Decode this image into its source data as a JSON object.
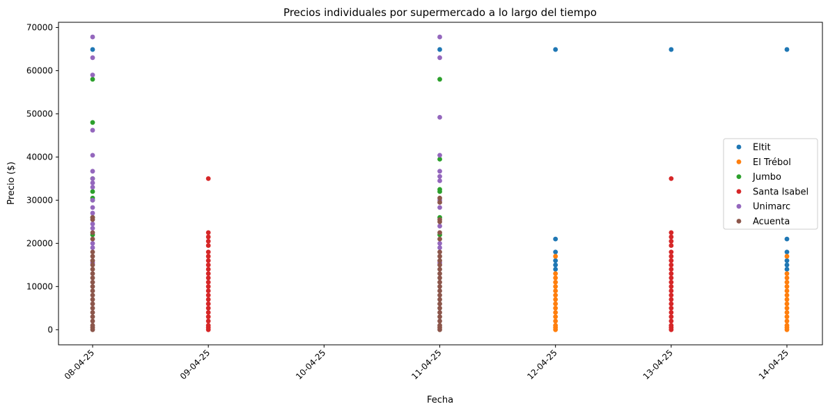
{
  "chart_data": {
    "type": "scatter",
    "title": "Precios individuales por supermercado a lo largo del tiempo",
    "xlabel": "Fecha",
    "ylabel": "Precio ($)",
    "categories": [
      "08-04-25",
      "09-04-25",
      "10-04-25",
      "11-04-25",
      "12-04-25",
      "13-04-25",
      "14-04-25"
    ],
    "ylim": [
      -3500,
      71200
    ],
    "yticks": [
      0,
      10000,
      20000,
      30000,
      40000,
      50000,
      60000,
      70000
    ],
    "grid": false,
    "legend_position": "right",
    "series": [
      {
        "name": "Eltit",
        "color": "#1f77b4",
        "points": [
          {
            "x": "08-04-25",
            "y": 64900
          },
          {
            "x": "11-04-25",
            "y": 64900
          },
          {
            "x": "12-04-25",
            "y": 64900
          },
          {
            "x": "12-04-25",
            "y": 21000
          },
          {
            "x": "12-04-25",
            "y": 18000
          },
          {
            "x": "12-04-25",
            "y": 16000
          },
          {
            "x": "12-04-25",
            "y": 15000
          },
          {
            "x": "12-04-25",
            "y": 14000
          },
          {
            "x": "13-04-25",
            "y": 64900
          },
          {
            "x": "14-04-25",
            "y": 64900
          },
          {
            "x": "14-04-25",
            "y": 21000
          },
          {
            "x": "14-04-25",
            "y": 18000
          },
          {
            "x": "14-04-25",
            "y": 16000
          },
          {
            "x": "14-04-25",
            "y": 15000
          },
          {
            "x": "14-04-25",
            "y": 14000
          }
        ]
      },
      {
        "name": "El Trébol",
        "color": "#ff7f0e",
        "points": [
          {
            "x": "12-04-25",
            "y": 17000
          },
          {
            "x": "12-04-25",
            "y": 13000
          },
          {
            "x": "12-04-25",
            "y": 12000
          },
          {
            "x": "12-04-25",
            "y": 11000
          },
          {
            "x": "12-04-25",
            "y": 10000
          },
          {
            "x": "12-04-25",
            "y": 9000
          },
          {
            "x": "12-04-25",
            "y": 8000
          },
          {
            "x": "12-04-25",
            "y": 7000
          },
          {
            "x": "12-04-25",
            "y": 6000
          },
          {
            "x": "12-04-25",
            "y": 5000
          },
          {
            "x": "12-04-25",
            "y": 4000
          },
          {
            "x": "12-04-25",
            "y": 3000
          },
          {
            "x": "12-04-25",
            "y": 2000
          },
          {
            "x": "12-04-25",
            "y": 1000
          },
          {
            "x": "12-04-25",
            "y": 500
          },
          {
            "x": "12-04-25",
            "y": 0
          },
          {
            "x": "14-04-25",
            "y": 17000
          },
          {
            "x": "14-04-25",
            "y": 13000
          },
          {
            "x": "14-04-25",
            "y": 12000
          },
          {
            "x": "14-04-25",
            "y": 11000
          },
          {
            "x": "14-04-25",
            "y": 10000
          },
          {
            "x": "14-04-25",
            "y": 9000
          },
          {
            "x": "14-04-25",
            "y": 8000
          },
          {
            "x": "14-04-25",
            "y": 7000
          },
          {
            "x": "14-04-25",
            "y": 6000
          },
          {
            "x": "14-04-25",
            "y": 5000
          },
          {
            "x": "14-04-25",
            "y": 4000
          },
          {
            "x": "14-04-25",
            "y": 3000
          },
          {
            "x": "14-04-25",
            "y": 2000
          },
          {
            "x": "14-04-25",
            "y": 1000
          },
          {
            "x": "14-04-25",
            "y": 500
          },
          {
            "x": "14-04-25",
            "y": 0
          }
        ]
      },
      {
        "name": "Jumbo",
        "color": "#2ca02c",
        "points": [
          {
            "x": "08-04-25",
            "y": 58000
          },
          {
            "x": "08-04-25",
            "y": 48000
          },
          {
            "x": "08-04-25",
            "y": 35000
          },
          {
            "x": "08-04-25",
            "y": 32000
          },
          {
            "x": "08-04-25",
            "y": 30500
          },
          {
            "x": "08-04-25",
            "y": 30000
          },
          {
            "x": "08-04-25",
            "y": 26000
          },
          {
            "x": "08-04-25",
            "y": 22000
          },
          {
            "x": "11-04-25",
            "y": 58000
          },
          {
            "x": "11-04-25",
            "y": 39500
          },
          {
            "x": "11-04-25",
            "y": 32500
          },
          {
            "x": "11-04-25",
            "y": 32000
          },
          {
            "x": "11-04-25",
            "y": 26000
          },
          {
            "x": "11-04-25",
            "y": 22000
          }
        ]
      },
      {
        "name": "Santa Isabel",
        "color": "#d62728",
        "points": [
          {
            "x": "09-04-25",
            "y": 35000
          },
          {
            "x": "09-04-25",
            "y": 22500
          },
          {
            "x": "09-04-25",
            "y": 21500
          },
          {
            "x": "09-04-25",
            "y": 20500
          },
          {
            "x": "09-04-25",
            "y": 19500
          },
          {
            "x": "09-04-25",
            "y": 18000
          },
          {
            "x": "09-04-25",
            "y": 17000
          },
          {
            "x": "09-04-25",
            "y": 16000
          },
          {
            "x": "09-04-25",
            "y": 15000
          },
          {
            "x": "09-04-25",
            "y": 14000
          },
          {
            "x": "09-04-25",
            "y": 13000
          },
          {
            "x": "09-04-25",
            "y": 12000
          },
          {
            "x": "09-04-25",
            "y": 11000
          },
          {
            "x": "09-04-25",
            "y": 10000
          },
          {
            "x": "09-04-25",
            "y": 9000
          },
          {
            "x": "09-04-25",
            "y": 8000
          },
          {
            "x": "09-04-25",
            "y": 7000
          },
          {
            "x": "09-04-25",
            "y": 6000
          },
          {
            "x": "09-04-25",
            "y": 5000
          },
          {
            "x": "09-04-25",
            "y": 4000
          },
          {
            "x": "09-04-25",
            "y": 3000
          },
          {
            "x": "09-04-25",
            "y": 2000
          },
          {
            "x": "09-04-25",
            "y": 1000
          },
          {
            "x": "09-04-25",
            "y": 500
          },
          {
            "x": "09-04-25",
            "y": 0
          },
          {
            "x": "13-04-25",
            "y": 35000
          },
          {
            "x": "13-04-25",
            "y": 22500
          },
          {
            "x": "13-04-25",
            "y": 21500
          },
          {
            "x": "13-04-25",
            "y": 20500
          },
          {
            "x": "13-04-25",
            "y": 19500
          },
          {
            "x": "13-04-25",
            "y": 18000
          },
          {
            "x": "13-04-25",
            "y": 17000
          },
          {
            "x": "13-04-25",
            "y": 16000
          },
          {
            "x": "13-04-25",
            "y": 15000
          },
          {
            "x": "13-04-25",
            "y": 14000
          },
          {
            "x": "13-04-25",
            "y": 13000
          },
          {
            "x": "13-04-25",
            "y": 12000
          },
          {
            "x": "13-04-25",
            "y": 11000
          },
          {
            "x": "13-04-25",
            "y": 10000
          },
          {
            "x": "13-04-25",
            "y": 9000
          },
          {
            "x": "13-04-25",
            "y": 8000
          },
          {
            "x": "13-04-25",
            "y": 7000
          },
          {
            "x": "13-04-25",
            "y": 6000
          },
          {
            "x": "13-04-25",
            "y": 5000
          },
          {
            "x": "13-04-25",
            "y": 4000
          },
          {
            "x": "13-04-25",
            "y": 3000
          },
          {
            "x": "13-04-25",
            "y": 2000
          },
          {
            "x": "13-04-25",
            "y": 1000
          },
          {
            "x": "13-04-25",
            "y": 500
          },
          {
            "x": "13-04-25",
            "y": 0
          }
        ]
      },
      {
        "name": "Unimarc",
        "color": "#9467bd",
        "points": [
          {
            "x": "08-04-25",
            "y": 67800
          },
          {
            "x": "08-04-25",
            "y": 63000
          },
          {
            "x": "08-04-25",
            "y": 59000
          },
          {
            "x": "08-04-25",
            "y": 46200
          },
          {
            "x": "08-04-25",
            "y": 40400
          },
          {
            "x": "08-04-25",
            "y": 36700
          },
          {
            "x": "08-04-25",
            "y": 35000
          },
          {
            "x": "08-04-25",
            "y": 34000
          },
          {
            "x": "08-04-25",
            "y": 33000
          },
          {
            "x": "08-04-25",
            "y": 30000
          },
          {
            "x": "08-04-25",
            "y": 28300
          },
          {
            "x": "08-04-25",
            "y": 27000
          },
          {
            "x": "08-04-25",
            "y": 24500
          },
          {
            "x": "08-04-25",
            "y": 23500
          },
          {
            "x": "08-04-25",
            "y": 20000
          },
          {
            "x": "08-04-25",
            "y": 19000
          },
          {
            "x": "08-04-25",
            "y": 15500
          },
          {
            "x": "11-04-25",
            "y": 67800
          },
          {
            "x": "11-04-25",
            "y": 63000
          },
          {
            "x": "11-04-25",
            "y": 49200
          },
          {
            "x": "11-04-25",
            "y": 40400
          },
          {
            "x": "11-04-25",
            "y": 36700
          },
          {
            "x": "11-04-25",
            "y": 35500
          },
          {
            "x": "11-04-25",
            "y": 34500
          },
          {
            "x": "11-04-25",
            "y": 30000
          },
          {
            "x": "11-04-25",
            "y": 28300
          },
          {
            "x": "11-04-25",
            "y": 24000
          },
          {
            "x": "11-04-25",
            "y": 20000
          },
          {
            "x": "11-04-25",
            "y": 19000
          },
          {
            "x": "11-04-25",
            "y": 15500
          }
        ]
      },
      {
        "name": "Acuenta",
        "color": "#8c564b",
        "points": [
          {
            "x": "08-04-25",
            "y": 26000
          },
          {
            "x": "08-04-25",
            "y": 25500
          },
          {
            "x": "08-04-25",
            "y": 22500
          },
          {
            "x": "08-04-25",
            "y": 21000
          },
          {
            "x": "08-04-25",
            "y": 18000
          },
          {
            "x": "08-04-25",
            "y": 17000
          },
          {
            "x": "08-04-25",
            "y": 16000
          },
          {
            "x": "08-04-25",
            "y": 15000
          },
          {
            "x": "08-04-25",
            "y": 14000
          },
          {
            "x": "08-04-25",
            "y": 13000
          },
          {
            "x": "08-04-25",
            "y": 12000
          },
          {
            "x": "08-04-25",
            "y": 11000
          },
          {
            "x": "08-04-25",
            "y": 10000
          },
          {
            "x": "08-04-25",
            "y": 9000
          },
          {
            "x": "08-04-25",
            "y": 8000
          },
          {
            "x": "08-04-25",
            "y": 7000
          },
          {
            "x": "08-04-25",
            "y": 6000
          },
          {
            "x": "08-04-25",
            "y": 5000
          },
          {
            "x": "08-04-25",
            "y": 4000
          },
          {
            "x": "08-04-25",
            "y": 3000
          },
          {
            "x": "08-04-25",
            "y": 2000
          },
          {
            "x": "08-04-25",
            "y": 1000
          },
          {
            "x": "08-04-25",
            "y": 500
          },
          {
            "x": "08-04-25",
            "y": 0
          },
          {
            "x": "11-04-25",
            "y": 30500
          },
          {
            "x": "11-04-25",
            "y": 29500
          },
          {
            "x": "11-04-25",
            "y": 25500
          },
          {
            "x": "11-04-25",
            "y": 25000
          },
          {
            "x": "11-04-25",
            "y": 22500
          },
          {
            "x": "11-04-25",
            "y": 21000
          },
          {
            "x": "11-04-25",
            "y": 18000
          },
          {
            "x": "11-04-25",
            "y": 17000
          },
          {
            "x": "11-04-25",
            "y": 16000
          },
          {
            "x": "11-04-25",
            "y": 15000
          },
          {
            "x": "11-04-25",
            "y": 14000
          },
          {
            "x": "11-04-25",
            "y": 13000
          },
          {
            "x": "11-04-25",
            "y": 12000
          },
          {
            "x": "11-04-25",
            "y": 11000
          },
          {
            "x": "11-04-25",
            "y": 10000
          },
          {
            "x": "11-04-25",
            "y": 9000
          },
          {
            "x": "11-04-25",
            "y": 8000
          },
          {
            "x": "11-04-25",
            "y": 7000
          },
          {
            "x": "11-04-25",
            "y": 6000
          },
          {
            "x": "11-04-25",
            "y": 5000
          },
          {
            "x": "11-04-25",
            "y": 4000
          },
          {
            "x": "11-04-25",
            "y": 3000
          },
          {
            "x": "11-04-25",
            "y": 2000
          },
          {
            "x": "11-04-25",
            "y": 1000
          },
          {
            "x": "11-04-25",
            "y": 500
          },
          {
            "x": "11-04-25",
            "y": 0
          }
        ]
      }
    ]
  }
}
